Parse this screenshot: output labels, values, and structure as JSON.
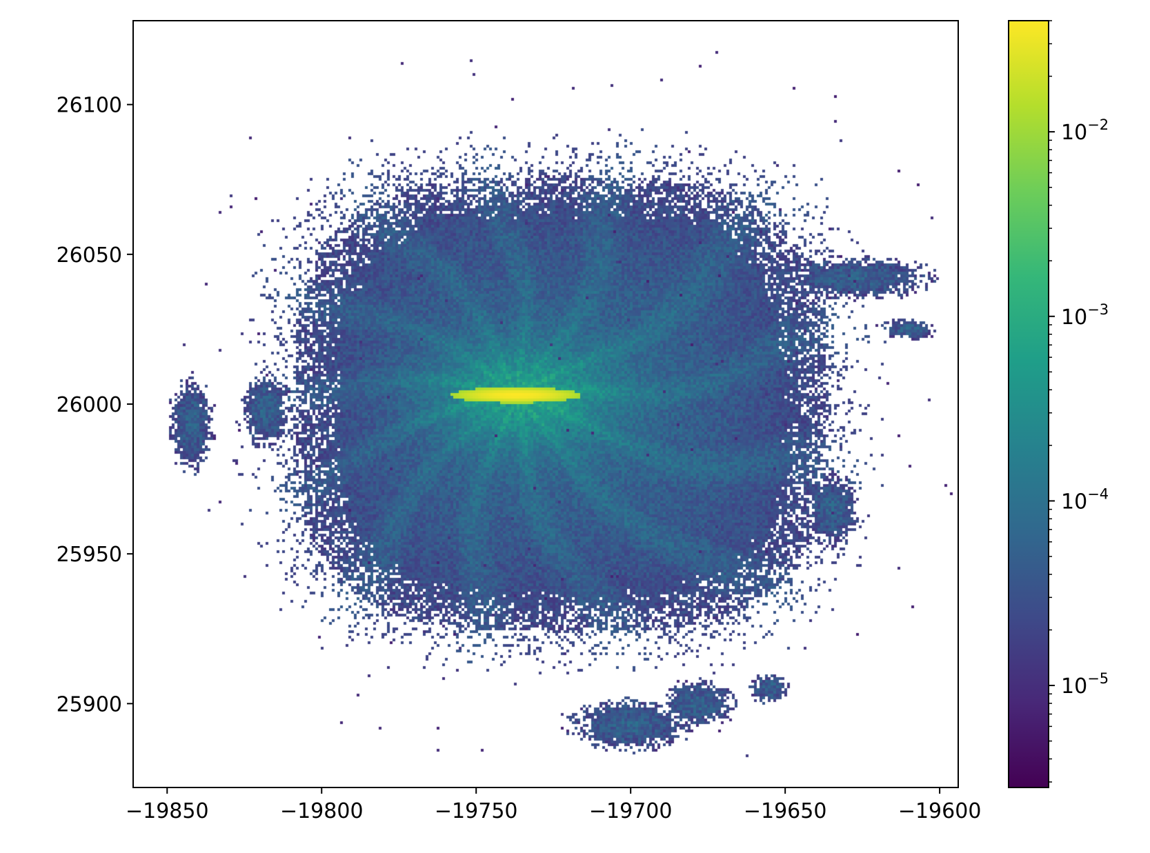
{
  "chart_data": {
    "type": "heatmap",
    "title": "",
    "xlabel": "",
    "ylabel": "",
    "xlim": [
      -19861,
      -19594
    ],
    "ylim": [
      25872,
      26128
    ],
    "x_ticks": [
      -19850,
      -19800,
      -19750,
      -19700,
      -19650,
      -19600
    ],
    "x_tick_labels": [
      "−19850",
      "−19800",
      "−19750",
      "−19700",
      "−19650",
      "−19600"
    ],
    "y_ticks": [
      25900,
      25950,
      26000,
      26050,
      26100
    ],
    "y_tick_labels": [
      "25900",
      "25950",
      "26000",
      "26050",
      "26100"
    ],
    "colormap": "viridis",
    "colorbar": {
      "scale": "log",
      "range": [
        2.8e-06,
        0.04
      ],
      "ticks": [
        1e-05,
        0.0001,
        0.001,
        0.01
      ],
      "tick_labels": [
        {
          "base": "10",
          "exp": "−5"
        },
        {
          "base": "10",
          "exp": "−4"
        },
        {
          "base": "10",
          "exp": "−3"
        },
        {
          "base": "10",
          "exp": "−2"
        }
      ]
    },
    "density_structure": {
      "peak_center": [
        -19737,
        26003
      ],
      "peak_half_width": [
        20,
        2.5
      ],
      "peak_value": 0.04,
      "background_value": 0.0001,
      "cloud_extent_x": [
        -19830,
        -19615
      ],
      "cloud_extent_y": [
        25905,
        26095
      ],
      "extended_features": [
        {
          "center": [
            -19842,
            25993
          ],
          "size": [
            8,
            18
          ]
        },
        {
          "center": [
            -19818,
            25998
          ],
          "size": [
            9,
            14
          ]
        },
        {
          "center": [
            -19628,
            26042
          ],
          "size": [
            30,
            8
          ]
        },
        {
          "center": [
            -19610,
            26025
          ],
          "size": [
            10,
            4
          ]
        },
        {
          "center": [
            -19700,
            25893
          ],
          "size": [
            22,
            10
          ]
        },
        {
          "center": [
            -19678,
            25900
          ],
          "size": [
            14,
            9
          ]
        },
        {
          "center": [
            -19655,
            25905
          ],
          "size": [
            7,
            6
          ]
        },
        {
          "center": [
            -19635,
            25965
          ],
          "size": [
            10,
            14
          ]
        }
      ]
    }
  }
}
